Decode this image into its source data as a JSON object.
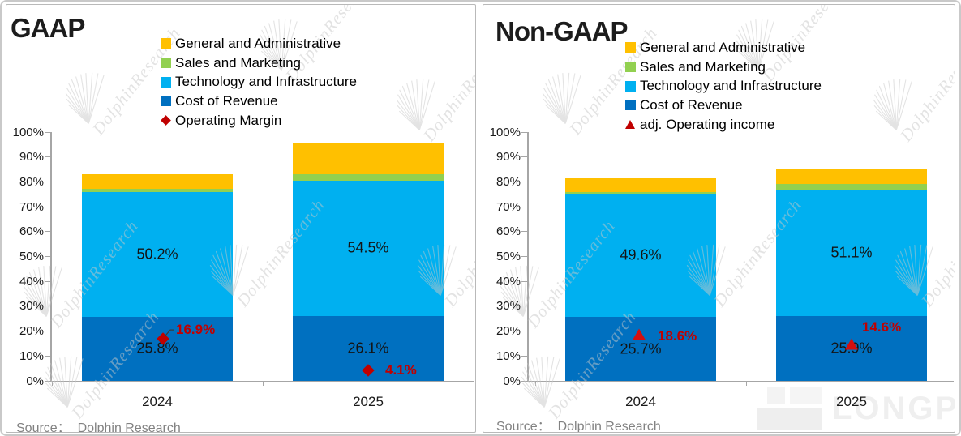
{
  "watermark": {
    "text": "DolphinResearch",
    "brand_text": "LONGPORT"
  },
  "chart_data": [
    {
      "type": "bar",
      "stacked": true,
      "title": "GAAP",
      "source": "Source：  Dolphin Research",
      "categories": [
        "2024",
        "2025"
      ],
      "ylim": [
        0,
        100
      ],
      "ytick_format": "percent",
      "grid": false,
      "legend_position": "top",
      "yticks": [
        "0%",
        "10%",
        "20%",
        "30%",
        "40%",
        "50%",
        "60%",
        "70%",
        "80%",
        "90%",
        "100%"
      ],
      "series": [
        {
          "name": "Cost of Revenue",
          "color": "#0070C0",
          "values": [
            25.8,
            26.1
          ],
          "data_labels": [
            "25.8%",
            "26.1%"
          ]
        },
        {
          "name": "Technology and Infrastructure",
          "color": "#00B0F0",
          "values": [
            50.2,
            54.5
          ],
          "data_labels": [
            "50.2%",
            "54.5%"
          ]
        },
        {
          "name": "Sales and Marketing",
          "color": "#92D050",
          "values": [
            1.2,
            2.5
          ],
          "data_labels": [
            "",
            ""
          ]
        },
        {
          "name": "General and Administrative",
          "color": "#FFC000",
          "values": [
            5.9,
            12.8
          ],
          "data_labels": [
            "",
            ""
          ]
        }
      ],
      "marker_series": {
        "name": "Operating Margin",
        "shape": "diamond",
        "color": "#C00000",
        "label_color": "#C00000",
        "values": [
          16.9,
          4.1
        ],
        "data_labels": [
          "16.9%",
          "4.1%"
        ]
      },
      "legend": [
        {
          "label": "General and Administrative",
          "color": "#FFC000",
          "shape": "square"
        },
        {
          "label": "Sales and Marketing",
          "color": "#92D050",
          "shape": "square"
        },
        {
          "label": "Technology and Infrastructure",
          "color": "#00B0F0",
          "shape": "square"
        },
        {
          "label": "Cost of Revenue",
          "color": "#0070C0",
          "shape": "square"
        },
        {
          "label": "Operating Margin",
          "color": "#C00000",
          "shape": "diamond"
        }
      ]
    },
    {
      "type": "bar",
      "stacked": true,
      "title": "Non-GAAP",
      "source": "Source：  Dolphin Research",
      "categories": [
        "2024",
        "2025"
      ],
      "ylim": [
        0,
        100
      ],
      "ytick_format": "percent",
      "grid": false,
      "legend_position": "top",
      "yticks": [
        "0%",
        "10%",
        "20%",
        "30%",
        "40%",
        "50%",
        "60%",
        "70%",
        "80%",
        "90%",
        "100%"
      ],
      "series": [
        {
          "name": "Cost of Revenue",
          "color": "#0070C0",
          "values": [
            25.7,
            25.9
          ],
          "data_labels": [
            "25.7%",
            "25.9%"
          ]
        },
        {
          "name": "Technology and Infrastructure",
          "color": "#00B0F0",
          "values": [
            49.6,
            51.1
          ],
          "data_labels": [
            "49.6%",
            "51.1%"
          ]
        },
        {
          "name": "Sales and Marketing",
          "color": "#92D050",
          "values": [
            0.6,
            2.2
          ],
          "data_labels": [
            "",
            ""
          ]
        },
        {
          "name": "General and Administrative",
          "color": "#FFC000",
          "values": [
            5.5,
            6.2
          ],
          "data_labels": [
            "",
            ""
          ]
        }
      ],
      "marker_series": {
        "name": "adj. Operating income",
        "shape": "triangle",
        "color": "#D40F0F",
        "label_color": "#C00000",
        "values": [
          18.6,
          14.6
        ],
        "data_labels": [
          "18.6%",
          "14.6%"
        ]
      },
      "legend": [
        {
          "label": "General and Administrative",
          "color": "#FFC000",
          "shape": "square"
        },
        {
          "label": "Sales and Marketing",
          "color": "#92D050",
          "shape": "square"
        },
        {
          "label": "Technology and Infrastructure",
          "color": "#00B0F0",
          "shape": "square"
        },
        {
          "label": "Cost of Revenue",
          "color": "#0070C0",
          "shape": "square"
        },
        {
          "label": "adj. Operating income",
          "color": "#C00000",
          "shape": "triangle"
        }
      ]
    }
  ]
}
